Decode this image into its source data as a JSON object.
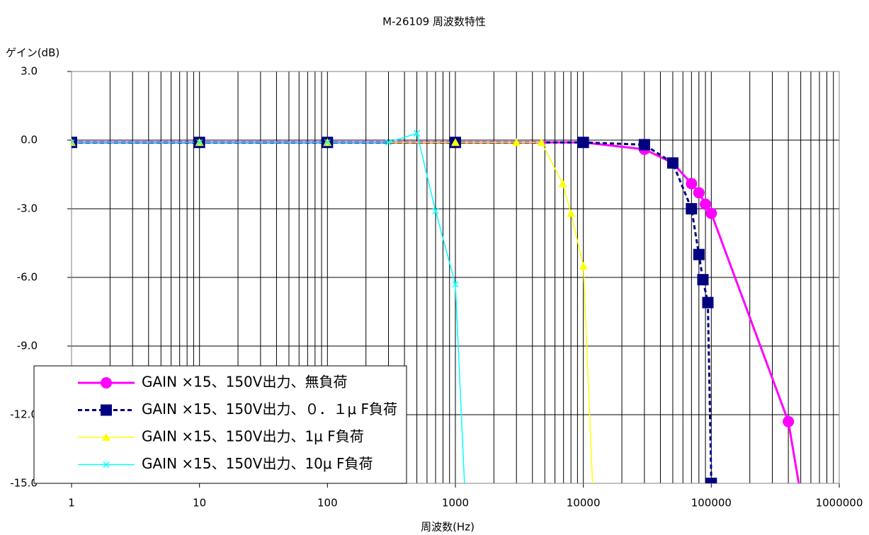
{
  "chart_data": {
    "type": "line",
    "title": "M-26109 周波数特性",
    "y_label": "ゲイン(dB)",
    "x_label": "周波数(Hz)",
    "x_log": true,
    "xlim": [
      1,
      1000000
    ],
    "xticks": [
      1,
      10,
      100,
      1000,
      10000,
      100000,
      1000000
    ],
    "ylim": [
      -15,
      3
    ],
    "yticks": [
      {
        "value": -15,
        "label": "-15.0"
      },
      {
        "value": -12,
        "label": "-12.0"
      },
      {
        "value": -9,
        "label": "-9.0"
      },
      {
        "value": -6,
        "label": "-6.0"
      },
      {
        "value": -3,
        "label": "-3.0"
      },
      {
        "value": 0,
        "label": "0.0"
      },
      {
        "value": 3,
        "label": "3.0"
      }
    ],
    "grid": true,
    "minor_grid": true,
    "legend": "lower left",
    "series": [
      {
        "name": "GAIN ×15、150V出力、無負荷",
        "color": "#ff00ff",
        "marker": "circle",
        "dash": "solid",
        "x": [
          1,
          10,
          100,
          1000,
          10000,
          30000,
          50000,
          70000,
          80000,
          90000,
          100000,
          400000,
          500000
        ],
        "values": [
          -0.1,
          -0.1,
          -0.1,
          -0.1,
          -0.1,
          -0.4,
          -1.0,
          -1.9,
          -2.3,
          -2.8,
          -3.2,
          -12.3,
          -15.5
        ]
      },
      {
        "name": "GAIN ×15、150V出力、０．１μ F負荷",
        "color": "#000080",
        "marker": "square",
        "dash": "dashed",
        "x": [
          1,
          10,
          100,
          1000,
          10000,
          30000,
          50000,
          70000,
          80000,
          86000,
          94000,
          100000
        ],
        "values": [
          -0.1,
          -0.1,
          -0.1,
          -0.1,
          -0.1,
          -0.2,
          -1.0,
          -3.0,
          -5.0,
          -6.1,
          -7.1,
          -15.0
        ]
      },
      {
        "name": "GAIN ×15、150V出力、1μ F負荷",
        "color": "#ffff00",
        "marker": "triangle",
        "dash": "solid",
        "x": [
          1,
          10,
          100,
          1000,
          3000,
          4700,
          6900,
          8000,
          10000,
          12000
        ],
        "values": [
          -0.1,
          -0.1,
          -0.1,
          -0.1,
          -0.1,
          -0.1,
          -1.9,
          -3.2,
          -5.5,
          -16
        ]
      },
      {
        "name": "GAIN ×15、150V出力、10μ F負荷",
        "color": "#00ffff",
        "marker": "x",
        "dash": "solid",
        "x": [
          1,
          10,
          100,
          300,
          500,
          700,
          1000,
          1200
        ],
        "values": [
          -0.1,
          -0.1,
          -0.1,
          -0.1,
          0.3,
          -3.1,
          -6.3,
          -16
        ]
      }
    ]
  }
}
